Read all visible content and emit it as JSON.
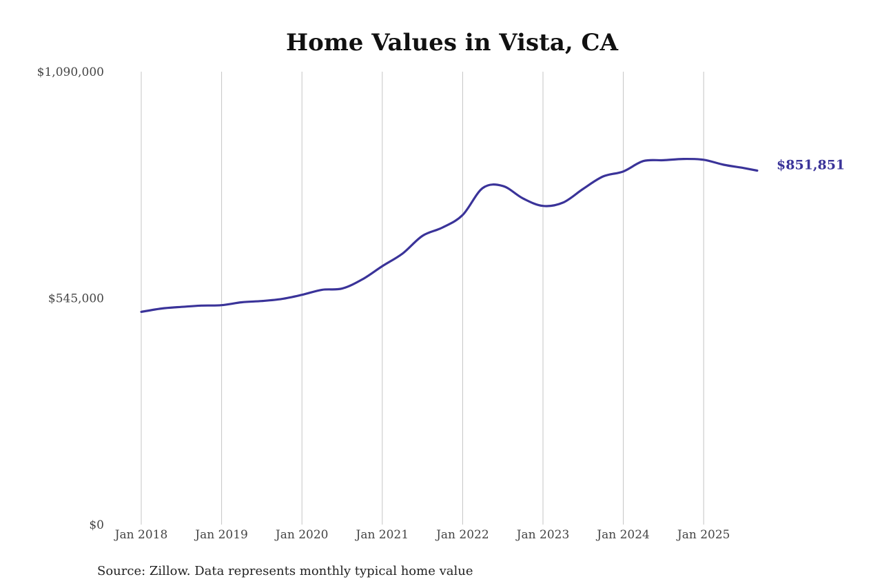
{
  "chart_data": {
    "type": "line",
    "title": "Home Values in Vista, CA",
    "ylim": [
      0,
      1090000
    ],
    "y_ticks": [
      {
        "value": 0,
        "label": "$0"
      },
      {
        "value": 545000,
        "label": "$545,000"
      },
      {
        "value": 1090000,
        "label": "$1,090,000"
      }
    ],
    "x_ticks": [
      {
        "value": "2018-01",
        "label": "Jan 2018"
      },
      {
        "value": "2019-01",
        "label": "Jan 2019"
      },
      {
        "value": "2020-01",
        "label": "Jan 2020"
      },
      {
        "value": "2021-01",
        "label": "Jan 2021"
      },
      {
        "value": "2022-01",
        "label": "Jan 2022"
      },
      {
        "value": "2023-01",
        "label": "Jan 2023"
      },
      {
        "value": "2024-01",
        "label": "Jan 2024"
      },
      {
        "value": "2025-01",
        "label": "Jan 2025"
      }
    ],
    "x_range": [
      "2018-01",
      "2025-09"
    ],
    "grid": {
      "vertical": true,
      "horizontal": false
    },
    "legend": "none",
    "line_color": "#3a3399",
    "series": [
      {
        "x": [
          "2018-01",
          "2018-04",
          "2018-07",
          "2018-10",
          "2019-01",
          "2019-04",
          "2019-07",
          "2019-10",
          "2020-01",
          "2020-04",
          "2020-07",
          "2020-10",
          "2021-01",
          "2021-04",
          "2021-07",
          "2021-10",
          "2022-01",
          "2022-04",
          "2022-07",
          "2022-10",
          "2023-01",
          "2023-04",
          "2023-07",
          "2023-10",
          "2024-01",
          "2024-04",
          "2024-07",
          "2024-10",
          "2025-01",
          "2025-04",
          "2025-07",
          "2025-09"
        ],
        "values": [
          512000,
          520000,
          524000,
          527000,
          528000,
          535000,
          538000,
          543000,
          553000,
          565000,
          568000,
          590000,
          622000,
          652000,
          695000,
          715000,
          745000,
          810000,
          815000,
          785000,
          767000,
          775000,
          808000,
          838000,
          850000,
          875000,
          877000,
          880000,
          878000,
          866000,
          858000,
          851851
        ]
      }
    ],
    "end_label": "$851,851",
    "source": "Source: Zillow. Data represents monthly typical home value"
  }
}
